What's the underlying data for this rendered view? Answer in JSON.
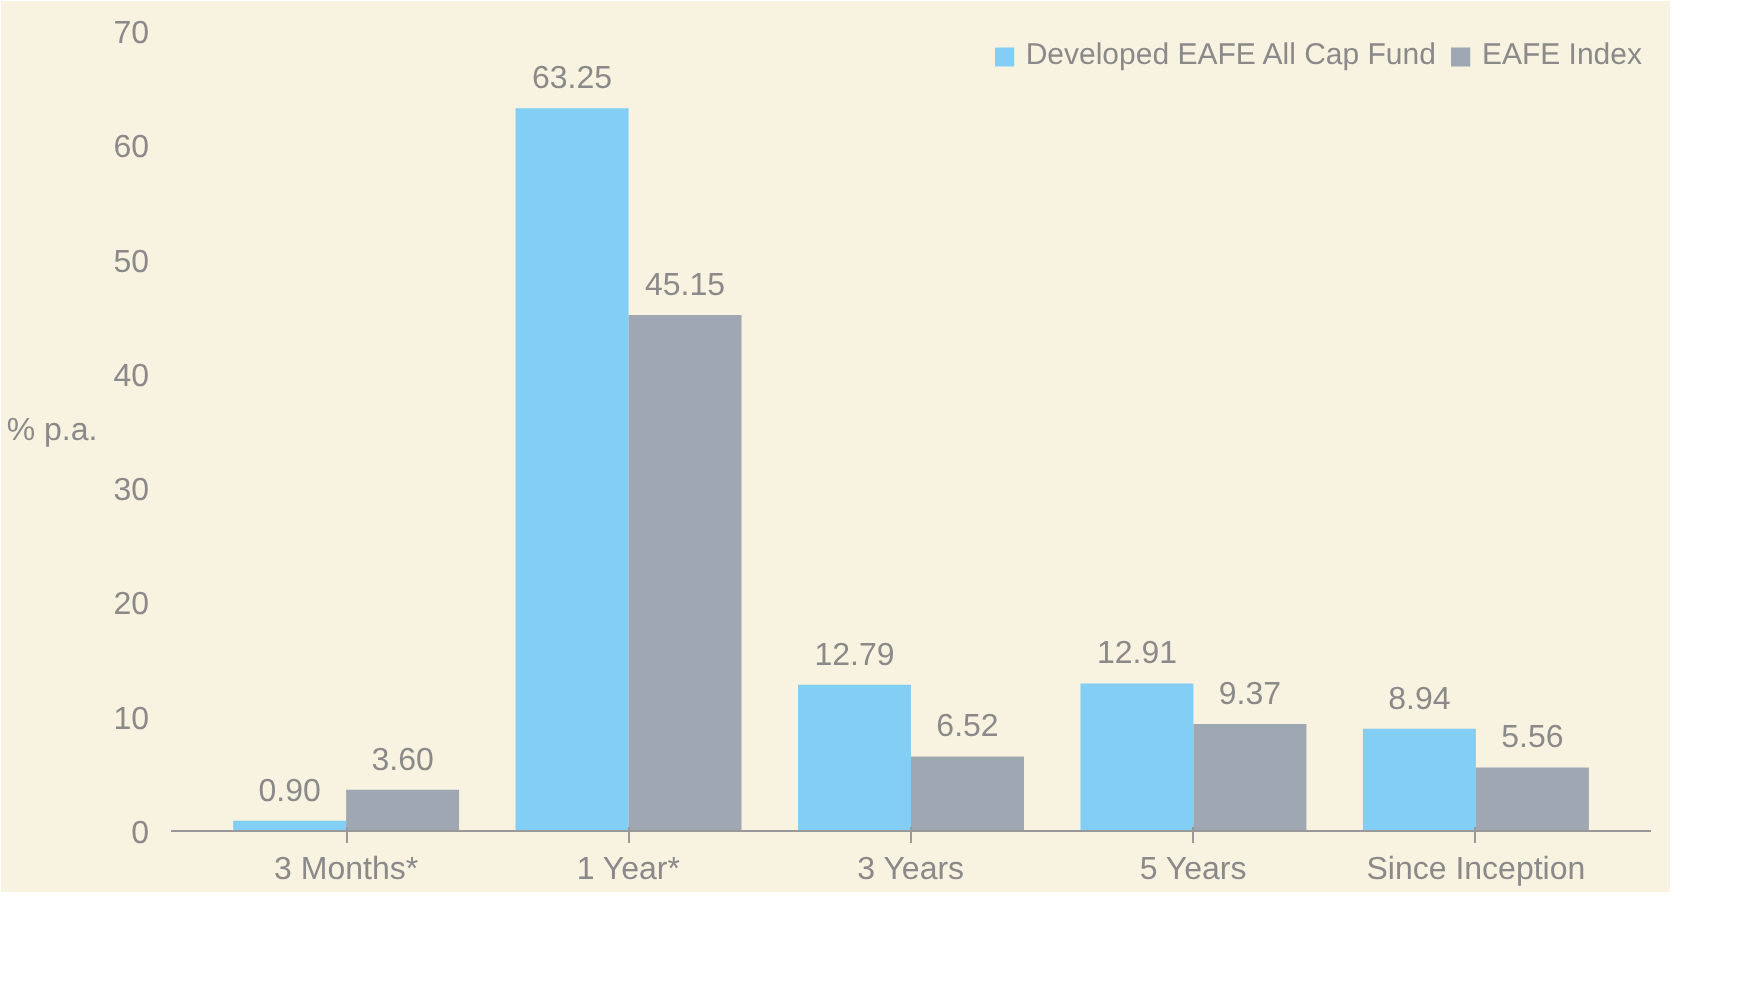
{
  "chart_data": {
    "type": "bar",
    "ylabel": "% p.a.",
    "categories": [
      "3 Months*",
      "1 Year*",
      "3 Years",
      "5 Years",
      "Since Inception"
    ],
    "series": [
      {
        "name": "Developed EAFE All Cap Fund",
        "color": "#82cef4",
        "values": [
          0.9,
          63.25,
          12.79,
          12.91,
          8.94
        ],
        "value_labels": [
          "0.90",
          "63.25",
          "12.79",
          "12.91",
          "8.94"
        ]
      },
      {
        "name": "EAFE Index",
        "color": "#9ea7b2",
        "values": [
          3.6,
          45.15,
          6.52,
          9.37,
          5.56
        ],
        "value_labels": [
          "3.60",
          "45.15",
          "6.52",
          "9.37",
          "5.56"
        ]
      }
    ],
    "ylim": [
      0,
      70
    ],
    "yticks": [
      0,
      10,
      20,
      30,
      40,
      50,
      60,
      70
    ],
    "legend": "top right",
    "grid": false,
    "data_labels": true
  }
}
